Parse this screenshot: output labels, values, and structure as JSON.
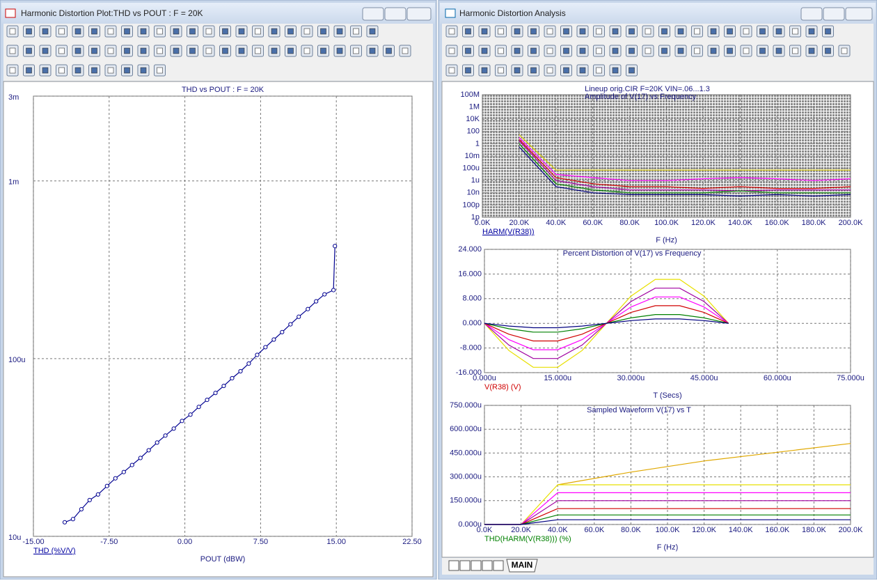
{
  "windows": [
    {
      "title": "Harmonic Distortion Plot:THD vs POUT : F = 20K"
    },
    {
      "title": "Harmonic Distortion Analysis"
    }
  ],
  "tab": "MAIN",
  "charts": [
    {
      "type": "line",
      "title": "THD vs POUT : F = 20K",
      "ylabel": "THD (%V/V)",
      "ylabel_color": "#0000a0",
      "xlabel": "POUT (dBW)",
      "grid": "dashed",
      "log_y": true,
      "xlim": [
        -15,
        22.5
      ],
      "ylim": [
        1e-05,
        0.003
      ],
      "xticks": [
        {
          "value": -15,
          "label": "-15.00"
        },
        {
          "value": -7.5,
          "label": "-7.50"
        },
        {
          "value": 0,
          "label": "0.00"
        },
        {
          "value": 7.5,
          "label": "7.50"
        },
        {
          "value": 15,
          "label": "15.00"
        },
        {
          "value": 22.5,
          "label": "22.50"
        }
      ],
      "yticks": [
        {
          "value": 1e-05,
          "label": "10u"
        },
        {
          "value": 0.0001,
          "label": "100u"
        },
        {
          "value": 0.001,
          "label": "1m"
        },
        {
          "value": 0.003,
          "label": "3m"
        }
      ],
      "x": [
        -11.9,
        -11.08,
        -10.25,
        -9.43,
        -8.6,
        -7.71,
        -6.88,
        -6.05,
        -5.23,
        -4.4,
        -3.58,
        -2.75,
        -1.93,
        -1.1,
        -0.28,
        0.55,
        1.38,
        2.2,
        3.03,
        3.85,
        4.68,
        5.51,
        6.33,
        7.16,
        7.98,
        8.81,
        9.63,
        10.46,
        11.28,
        12.18,
        13,
        13.83,
        14.72,
        14.86
      ],
      "series": [
        {
          "color": "#000090",
          "markers": true,
          "values": [
            1.2e-05,
            1.25e-05,
            1.42e-05,
            1.6e-05,
            1.72e-05,
            1.92e-05,
            2.12e-05,
            2.3e-05,
            2.52e-05,
            2.76e-05,
            3.05e-05,
            3.37e-05,
            3.69e-05,
            4.04e-05,
            4.46e-05,
            4.84e-05,
            5.35e-05,
            5.86e-05,
            6.41e-05,
            7.02e-05,
            7.76e-05,
            8.49e-05,
            9.38e-05,
            0.000105,
            0.000116,
            0.000128,
            0.000141,
            0.000156,
            0.000172,
            0.00019,
            0.00021,
            0.00023,
            0.000243,
            0.00043
          ]
        }
      ]
    },
    {
      "type": "line",
      "title": "Lineup orig.CIR F=20K VIN=.06...1.3",
      "subtitle": "Amplitude of V(17) vs Frequency",
      "ylabel": "HARM(V(R38))",
      "ylabel_color": "#0000a0",
      "xlabel": "F (Hz)",
      "grid": "dense",
      "log_y": true,
      "xlim": [
        0,
        200000
      ],
      "ylim": [
        1e-12,
        100000000
      ],
      "xticks": [
        {
          "value": 0,
          "label": "0.0K"
        },
        {
          "value": 20000,
          "label": "20.0K"
        },
        {
          "value": 40000,
          "label": "40.0K"
        },
        {
          "value": 60000,
          "label": "60.0K"
        },
        {
          "value": 80000,
          "label": "80.0K"
        },
        {
          "value": 100000,
          "label": "100.0K"
        },
        {
          "value": 120000,
          "label": "120.0K"
        },
        {
          "value": 140000,
          "label": "140.0K"
        },
        {
          "value": 160000,
          "label": "160.0K"
        },
        {
          "value": 180000,
          "label": "180.0K"
        },
        {
          "value": 200000,
          "label": "200.0K"
        }
      ],
      "yticks": [
        {
          "value": 1e-12,
          "label": "1p"
        },
        {
          "value": 1e-10,
          "label": "100p"
        },
        {
          "value": 1e-08,
          "label": "10n"
        },
        {
          "value": 1e-06,
          "label": "1u"
        },
        {
          "value": 0.0001,
          "label": "100u"
        },
        {
          "value": 0.01,
          "label": "10m"
        },
        1,
        100,
        {
          "value": 10000,
          "label": "10K"
        },
        {
          "value": 1000000,
          "label": "1M"
        },
        {
          "value": 100000000,
          "label": "100M"
        }
      ],
      "x": [
        20000,
        40000,
        60000,
        80000,
        100000,
        120000,
        140000,
        160000,
        180000,
        200000
      ],
      "series": [
        {
          "color": "#d8c800",
          "values": [
            30,
            5e-05,
            5e-05,
            5e-05,
            5e-05,
            5e-05,
            5e-05,
            5e-05,
            5e-05,
            5e-05
          ]
        },
        {
          "color": "#ff00ff",
          "values": [
            10,
            1e-05,
            3e-06,
            1e-06,
            1e-06,
            2e-06,
            3e-06,
            2e-06,
            1e-06,
            2e-06
          ]
        },
        {
          "color": "#d00000",
          "values": [
            5,
            3e-06,
            3e-07,
            1e-07,
            1e-07,
            5e-08,
            1e-07,
            5e-08,
            5e-08,
            1e-07
          ]
        },
        {
          "color": "#a000a0",
          "values": [
            3,
            1e-06,
            1e-07,
            3e-08,
            3e-08,
            3e-08,
            2e-08,
            3e-08,
            3e-08,
            3e-08
          ]
        },
        {
          "color": "#008000",
          "values": [
            1,
            3e-07,
            3e-08,
            1e-08,
            1e-08,
            1e-08,
            2e-08,
            1e-08,
            1e-08,
            1e-08
          ]
        },
        {
          "color": "#000080",
          "values": [
            0.3,
            1e-07,
            1e-08,
            5e-09,
            5e-09,
            5e-09,
            3e-09,
            5e-09,
            3e-09,
            5e-09
          ]
        }
      ]
    },
    {
      "type": "line",
      "title": "Percent Distortion of V(17) vs Frequency",
      "ylabel": "V(R38) (V)",
      "ylabel_color": "#d00000",
      "xlabel": "T (Secs)",
      "grid": "dashed",
      "log_y": false,
      "xlim": [
        0,
        7.5e-05
      ],
      "ylim": [
        -16,
        24
      ],
      "xticks": [
        {
          "value": 0,
          "label": "0.000u"
        },
        {
          "value": 1.5e-05,
          "label": "15.000u"
        },
        {
          "value": 3e-05,
          "label": "30.000u"
        },
        {
          "value": 4.5e-05,
          "label": "45.000u"
        },
        {
          "value": 6e-05,
          "label": "60.000u"
        },
        {
          "value": 7.5e-05,
          "label": "75.000u"
        }
      ],
      "yticks": [
        {
          "value": -16,
          "label": "-16.000"
        },
        {
          "value": -8,
          "label": "-8.000"
        },
        {
          "value": 0,
          "label": "0.000"
        },
        {
          "value": 8,
          "label": "8.000"
        },
        {
          "value": 16,
          "label": "16.000"
        },
        {
          "value": 24,
          "label": "24.000"
        }
      ],
      "x": [
        0,
        5e-06,
        1e-05,
        1.5e-05,
        2e-05,
        2.5e-05,
        3e-05,
        3.5e-05,
        4e-05,
        4.5e-05,
        5e-05
      ],
      "series": [
        {
          "color": "#e8e000",
          "values": [
            0,
            -8.82,
            -14.27,
            -14.27,
            -8.82,
            0,
            8.82,
            14.27,
            14.27,
            8.82,
            0
          ]
        },
        {
          "color": "#a000a0",
          "values": [
            0,
            -7.06,
            -11.41,
            -11.41,
            -7.06,
            0,
            7.06,
            11.41,
            11.41,
            7.06,
            0
          ]
        },
        {
          "color": "#ff00ff",
          "values": [
            0,
            -5.29,
            -8.56,
            -8.56,
            -5.29,
            0,
            5.29,
            8.56,
            8.56,
            5.29,
            0
          ]
        },
        {
          "color": "#d00000",
          "values": [
            0,
            -3.53,
            -5.71,
            -5.71,
            -3.53,
            0,
            3.53,
            5.71,
            5.71,
            3.53,
            0
          ]
        },
        {
          "color": "#008000",
          "values": [
            0,
            -1.76,
            -2.85,
            -2.85,
            -1.76,
            0,
            1.76,
            2.85,
            2.85,
            1.76,
            0
          ]
        },
        {
          "color": "#000080",
          "values": [
            0,
            -0.88,
            -1.43,
            -1.43,
            -0.88,
            0,
            0.88,
            1.43,
            1.43,
            0.88,
            0
          ]
        }
      ]
    },
    {
      "type": "line",
      "title": "Sampled Waveform  V(17) vs T",
      "ylabel": "THD(HARM(V(R38))) (%)",
      "ylabel_color": "#008000",
      "xlabel": "F (Hz)",
      "grid": "dashed",
      "log_y": false,
      "xlim": [
        0,
        200000
      ],
      "ylim": [
        0,
        0.00075
      ],
      "xticks": [
        {
          "value": 0,
          "label": "0.0K"
        },
        {
          "value": 20000,
          "label": "20.0K"
        },
        {
          "value": 40000,
          "label": "40.0K"
        },
        {
          "value": 60000,
          "label": "60.0K"
        },
        {
          "value": 80000,
          "label": "80.0K"
        },
        {
          "value": 100000,
          "label": "100.0K"
        },
        {
          "value": 120000,
          "label": "120.0K"
        },
        {
          "value": 140000,
          "label": "140.0K"
        },
        {
          "value": 160000,
          "label": "160.0K"
        },
        {
          "value": 180000,
          "label": "180.0K"
        },
        {
          "value": 200000,
          "label": "200.0K"
        }
      ],
      "yticks": [
        {
          "value": 0,
          "label": "0.000u"
        },
        {
          "value": 0.00015,
          "label": "150.000u"
        },
        {
          "value": 0.0003,
          "label": "300.000u"
        },
        {
          "value": 0.00045,
          "label": "450.000u"
        },
        {
          "value": 0.0006,
          "label": "600.000u"
        },
        {
          "value": 0.00075,
          "label": "750.000u"
        }
      ],
      "x": [
        0,
        20000,
        40000,
        80000,
        120000,
        160000,
        200000
      ],
      "series": [
        {
          "color": "#e0a800",
          "values": [
            null,
            null,
            0.00025,
            0.00033,
            0.0004,
            0.000455,
            0.00051
          ]
        },
        {
          "color": "#e8e000",
          "values": [
            0,
            0,
            0.00025,
            0.00025,
            0.00025,
            0.00025,
            0.00025
          ]
        },
        {
          "color": "#ff00ff",
          "values": [
            0,
            0,
            0.0002,
            0.0002,
            0.0002,
            0.0002,
            0.0002
          ]
        },
        {
          "color": "#a000a0",
          "values": [
            0,
            0,
            0.00015,
            0.00015,
            0.00015,
            0.00015,
            0.00015
          ]
        },
        {
          "color": "#d00000",
          "values": [
            0,
            0,
            0.0001,
            0.0001,
            0.0001,
            0.0001,
            0.0001
          ]
        },
        {
          "color": "#008000",
          "values": [
            0,
            0,
            6e-05,
            6e-05,
            6e-05,
            6e-05,
            6e-05
          ]
        },
        {
          "color": "#000080",
          "values": [
            0,
            0,
            3e-05,
            3e-05,
            3e-05,
            3e-05,
            3e-05
          ]
        }
      ]
    }
  ]
}
